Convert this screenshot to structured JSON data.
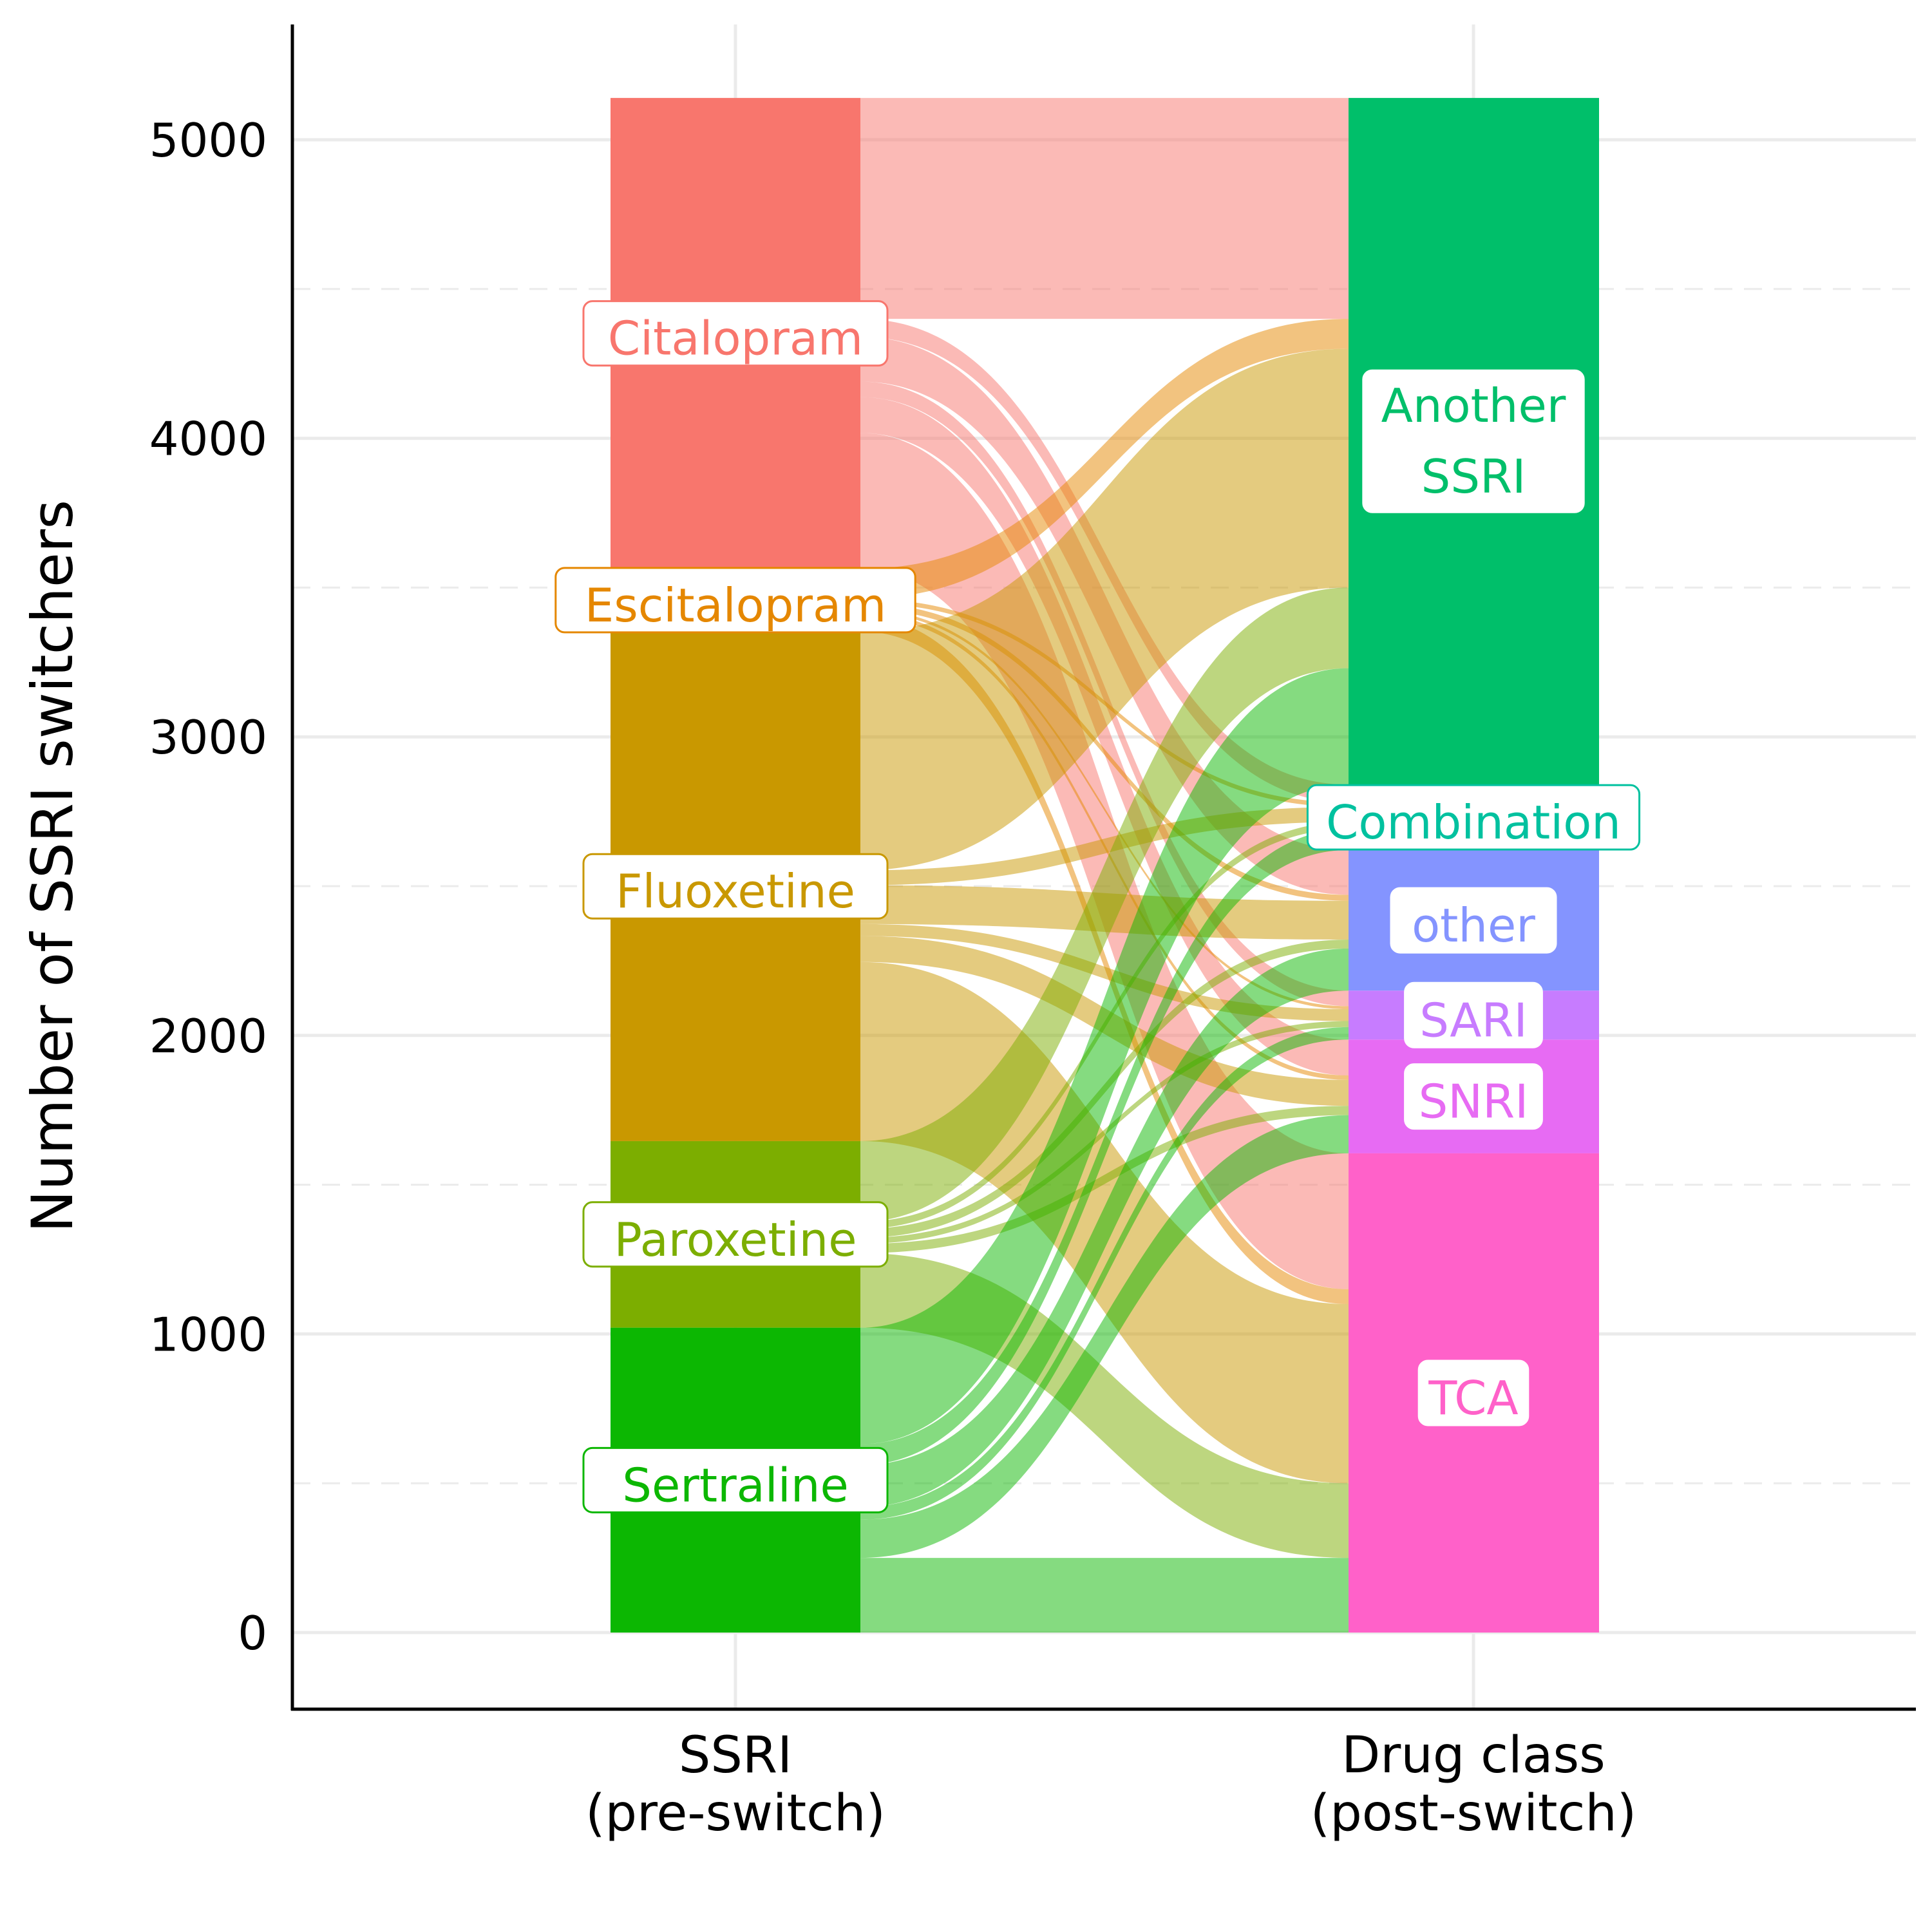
{
  "chart_data": {
    "type": "alluvial",
    "ylabel": "Number of SSRI switchers",
    "ylim": [
      -250,
      5350
    ],
    "yticks": [
      0,
      1000,
      2000,
      3000,
      4000,
      5000
    ],
    "grid": true,
    "axes": [
      {
        "label_line1": "SSRI",
        "label_line2": "(pre-switch)"
      },
      {
        "label_line1": "Drug class",
        "label_line2": "(post-switch)"
      }
    ],
    "left_strata": [
      {
        "name": "Citalopram",
        "color": "#F8766D"
      },
      {
        "name": "Escitalopram",
        "color": "#E58700"
      },
      {
        "name": "Fluoxetine",
        "color": "#C99800"
      },
      {
        "name": "Paroxetine",
        "color": "#7CAE00"
      },
      {
        "name": "Sertraline",
        "color": "#0CB702"
      }
    ],
    "right_strata": [
      {
        "name": "Another SSRI",
        "label_lines": [
          "Another",
          "SSRI"
        ],
        "color": "#00BF6A"
      },
      {
        "name": "Combination",
        "label_lines": [
          "Combination"
        ],
        "color": "#00C19F"
      },
      {
        "name": "other",
        "label_lines": [
          "other"
        ],
        "color": "#8494FF"
      },
      {
        "name": "SARI",
        "label_lines": [
          "SARI"
        ],
        "color": "#C77CFF"
      },
      {
        "name": "SNRI",
        "label_lines": [
          "SNRI"
        ],
        "color": "#E76BF3"
      },
      {
        "name": "TCA",
        "label_lines": [
          "TCA"
        ],
        "color": "#FF61C9"
      }
    ],
    "flows": {
      "Citalopram": {
        "Another SSRI": 740,
        "Combination": 60,
        "other": 150,
        "SARI": 52,
        "SNRI": 120,
        "TCA": 455
      },
      "Escitalopram": {
        "Another SSRI": 100,
        "Combination": 15,
        "other": 20,
        "SARI": 10,
        "SNRI": 15,
        "TCA": 50
      },
      "Fluoxetine": {
        "Another SSRI": 800,
        "Combination": 50,
        "other": 130,
        "SARI": 40,
        "SNRI": 87,
        "TCA": 600
      },
      "Paroxetine": {
        "Another SSRI": 270,
        "Combination": 24,
        "other": 30,
        "SARI": 20,
        "SNRI": 31,
        "TCA": 250
      },
      "Sertraline": {
        "Another SSRI": 390,
        "Combination": 70,
        "other": 141,
        "SARI": 42,
        "SNRI": 128,
        "TCA": 250
      }
    }
  }
}
